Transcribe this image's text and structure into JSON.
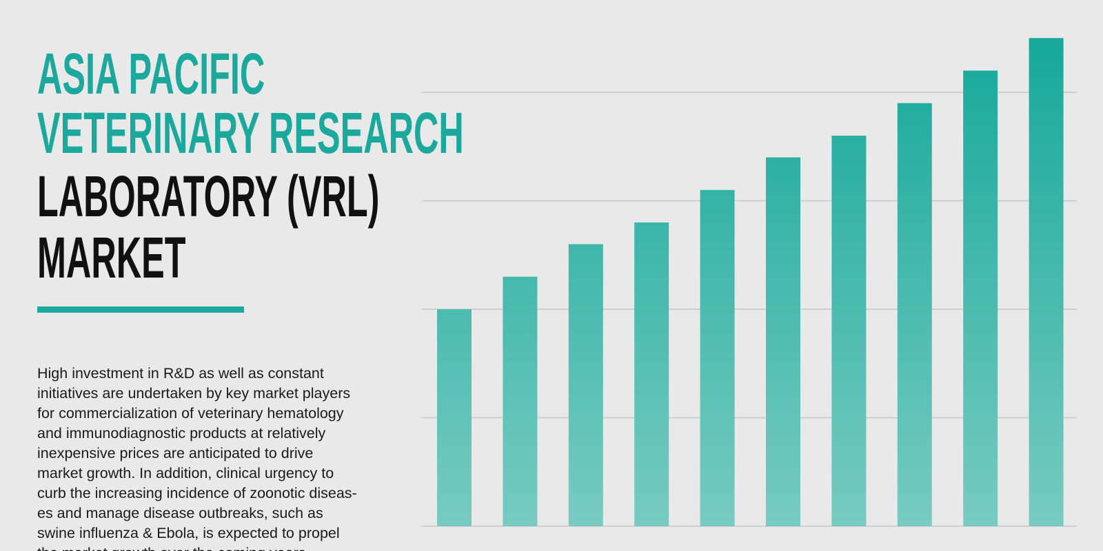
{
  "header": {
    "title_lines": [
      "ASIA PACIFIC",
      "VETERINARY RESEARCH",
      "LABORATORY (VRL)",
      "MARKET"
    ]
  },
  "body": {
    "lines": [
      "High investment in R&D as well as constant",
      "initiatives are undertaken by key market players",
      "for commercialization of veterinary hematology",
      "and immunodiagnostic products at relatively",
      "inexpensive prices are anticipated to drive",
      "market growth. In addition, clinical urgency to",
      "curb the increasing incidence of zoonotic diseas-",
      "es and manage disease outbreaks, such as",
      "swine influenza & Ebola, is expected to propel",
      "the market growth over the coming years."
    ]
  },
  "chart_data": {
    "type": "bar",
    "categories": [
      null,
      null,
      null,
      null,
      null,
      null,
      null,
      null,
      null,
      null
    ],
    "values": [
      2.0,
      2.3,
      2.6,
      2.8,
      3.1,
      3.4,
      3.6,
      3.9,
      4.2,
      4.5
    ],
    "color": "#1aa99c",
    "ylim": [
      0,
      4.8
    ],
    "yticks": [
      0,
      1,
      2,
      3,
      4
    ],
    "grid": true
  }
}
